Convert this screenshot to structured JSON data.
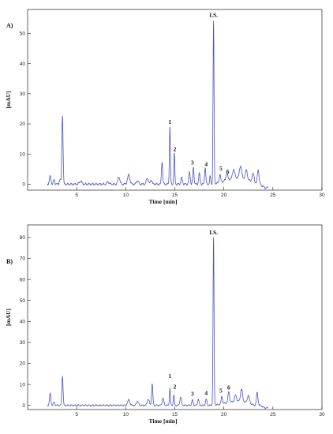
{
  "chart_data": [
    {
      "type": "line",
      "panel_label": "A)",
      "xlabel": "Time [min]",
      "ylabel": "[mAU]",
      "xlim": [
        0,
        30
      ],
      "ylim": [
        -2,
        58
      ],
      "xticks": [
        5,
        10,
        15,
        20,
        25,
        30
      ],
      "yticks": [
        0,
        10,
        20,
        30,
        40,
        50
      ],
      "grid": false,
      "baseline_end": 24.5,
      "peaks": [
        {
          "t": 2.3,
          "h": 2.5,
          "w": 0.08
        },
        {
          "t": 2.7,
          "h": 1.5,
          "w": 0.07
        },
        {
          "t": 3.3,
          "h": 1.5,
          "w": 0.07
        },
        {
          "t": 3.55,
          "h": 23,
          "w": 0.06
        },
        {
          "t": 5.4,
          "h": 1.0,
          "w": 0.12
        },
        {
          "t": 8.2,
          "h": 0.8,
          "w": 0.1
        },
        {
          "t": 9.3,
          "h": 2.5,
          "w": 0.1
        },
        {
          "t": 10.3,
          "h": 3.0,
          "w": 0.12
        },
        {
          "t": 11.2,
          "h": 1.2,
          "w": 0.1
        },
        {
          "t": 12.2,
          "h": 2.0,
          "w": 0.1
        },
        {
          "t": 12.6,
          "h": 1.5,
          "w": 0.08
        },
        {
          "t": 13.7,
          "h": 7.5,
          "w": 0.06
        },
        {
          "t": 14.5,
          "h": 19,
          "w": 0.05
        },
        {
          "t": 14.95,
          "h": 10,
          "w": 0.05
        },
        {
          "t": 15.7,
          "h": 2.0,
          "w": 0.08
        },
        {
          "t": 16.5,
          "h": 4.0,
          "w": 0.07
        },
        {
          "t": 16.9,
          "h": 5.5,
          "w": 0.06
        },
        {
          "t": 17.5,
          "h": 3.5,
          "w": 0.07
        },
        {
          "t": 18.1,
          "h": 5.5,
          "w": 0.06
        },
        {
          "t": 18.6,
          "h": 2.5,
          "w": 0.06
        },
        {
          "t": 18.95,
          "h": 54,
          "w": 0.05
        },
        {
          "t": 19.6,
          "h": 2.5,
          "w": 0.07
        },
        {
          "t": 20.3,
          "h": 2.5,
          "w": 0.08
        },
        {
          "t": 21.0,
          "h": 3.0,
          "w": 0.1
        },
        {
          "t": 21.7,
          "h": 4.0,
          "w": 0.1
        },
        {
          "t": 22.3,
          "h": 3.0,
          "w": 0.1
        },
        {
          "t": 23.0,
          "h": 3.0,
          "w": 0.12
        },
        {
          "t": 23.5,
          "h": 5.0,
          "w": 0.08
        }
      ],
      "hump": {
        "start": 18.5,
        "end": 23.6,
        "h": 3.5
      },
      "annotations": [
        {
          "text": "I.S.",
          "t": 18.95,
          "y": 55.5
        },
        {
          "text": "1",
          "t": 14.5,
          "y": 20.0
        },
        {
          "text": "2",
          "t": 15.0,
          "y": 11.0
        },
        {
          "text": "3",
          "t": 16.8,
          "y": 6.5
        },
        {
          "text": "4",
          "t": 18.2,
          "y": 6.0
        },
        {
          "text": "5",
          "t": 19.7,
          "y": 4.5
        },
        {
          "text": "6",
          "t": 20.4,
          "y": 3.5
        }
      ]
    },
    {
      "type": "line",
      "panel_label": "B)",
      "xlabel": "Time [min]",
      "ylabel": "[mAU]",
      "xlim": [
        0,
        30
      ],
      "ylim": [
        -2,
        86
      ],
      "xticks": [
        5,
        10,
        15,
        20,
        25,
        30
      ],
      "yticks": [
        0,
        10,
        20,
        30,
        40,
        50,
        60,
        70,
        80
      ],
      "grid": false,
      "baseline_end": 24.5,
      "peaks": [
        {
          "t": 2.3,
          "h": 5.5,
          "w": 0.07
        },
        {
          "t": 2.7,
          "h": 1.5,
          "w": 0.07
        },
        {
          "t": 3.55,
          "h": 14,
          "w": 0.06
        },
        {
          "t": 10.3,
          "h": 2.5,
          "w": 0.12
        },
        {
          "t": 11.2,
          "h": 2.0,
          "w": 0.1
        },
        {
          "t": 12.3,
          "h": 3.0,
          "w": 0.1
        },
        {
          "t": 12.7,
          "h": 10,
          "w": 0.06
        },
        {
          "t": 13.8,
          "h": 3.5,
          "w": 0.08
        },
        {
          "t": 14.5,
          "h": 8,
          "w": 0.05
        },
        {
          "t": 14.9,
          "h": 5,
          "w": 0.05
        },
        {
          "t": 15.6,
          "h": 4.0,
          "w": 0.08
        },
        {
          "t": 16.8,
          "h": 2.5,
          "w": 0.07
        },
        {
          "t": 17.4,
          "h": 3.0,
          "w": 0.07
        },
        {
          "t": 18.2,
          "h": 3.0,
          "w": 0.07
        },
        {
          "t": 18.95,
          "h": 80,
          "w": 0.05
        },
        {
          "t": 19.8,
          "h": 3.5,
          "w": 0.07
        },
        {
          "t": 20.5,
          "h": 5.0,
          "w": 0.08
        },
        {
          "t": 21.2,
          "h": 3.0,
          "w": 0.1
        },
        {
          "t": 21.8,
          "h": 6.0,
          "w": 0.1
        },
        {
          "t": 22.5,
          "h": 3.5,
          "w": 0.1
        },
        {
          "t": 23.4,
          "h": 6.0,
          "w": 0.08
        }
      ],
      "hump": {
        "start": 18.5,
        "end": 23.6,
        "h": 3.0
      },
      "annotations": [
        {
          "text": "I.S.",
          "t": 18.95,
          "y": 81.5
        },
        {
          "text": "1",
          "t": 14.5,
          "y": 13.0
        },
        {
          "text": "2",
          "t": 15.0,
          "y": 8.0
        },
        {
          "text": "3",
          "t": 16.8,
          "y": 4.5
        },
        {
          "text": "4",
          "t": 18.2,
          "y": 5.0
        },
        {
          "text": "5",
          "t": 19.7,
          "y": 6.0
        },
        {
          "text": "6",
          "t": 20.5,
          "y": 7.5
        }
      ]
    }
  ],
  "colors": {
    "trace": "#4a52c8",
    "axis": "#222222"
  }
}
